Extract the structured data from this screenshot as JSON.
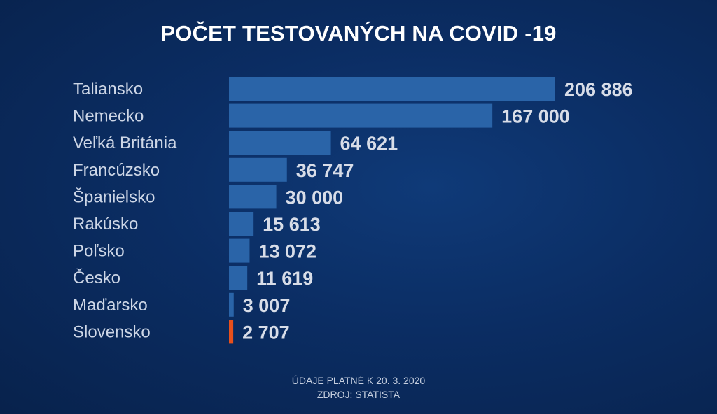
{
  "chart_data": {
    "type": "bar",
    "orientation": "horizontal",
    "title": "POČET TESTOVANÝCH NA COVID -19",
    "categories": [
      "Taliansko",
      "Nemecko",
      "Veľká Británia",
      "Francúzsko",
      "Španielsko",
      "Rakúsko",
      "Poľsko",
      "Česko",
      "Maďarsko",
      "Slovensko"
    ],
    "values": [
      206886,
      167000,
      64621,
      36747,
      30000,
      15613,
      13072,
      11619,
      3007,
      2707
    ],
    "value_labels": [
      "206 886",
      "167 000",
      "64 621",
      "36 747",
      "30 000",
      "15 613",
      "13 072",
      "11 619",
      "3 007",
      "2 707"
    ],
    "highlight_category": "Slovensko",
    "colors": {
      "bar": "#2a64a8",
      "highlight": "#e8501c"
    },
    "grid": false,
    "legend": "none"
  },
  "footer": {
    "note": "ÚDAJE PLATNÉ K 20. 3. 2020",
    "source": "ZDROJ: STATISTA"
  }
}
